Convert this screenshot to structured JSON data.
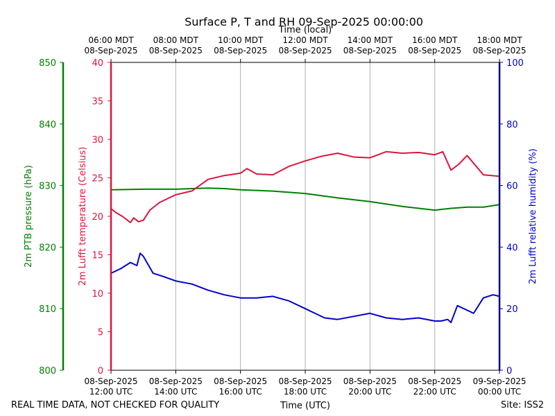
{
  "chart_data": {
    "type": "line",
    "title": "Surface P, T and RH 09-Sep-2025 00:00:00",
    "top_axis_title": "Time (local)",
    "xlabel": "Time (UTC)",
    "footer_left": "REAL TIME DATA, NOT CHECKED FOR QUALITY",
    "footer_right": "Site: ISS2",
    "x_range_hours": [
      12,
      24
    ],
    "x_ticks_hours": [
      12,
      14,
      16,
      18,
      20,
      22,
      24
    ],
    "bottom_tick_labels": [
      [
        "08-Sep-2025",
        "12:00 UTC"
      ],
      [
        "08-Sep-2025",
        "14:00 UTC"
      ],
      [
        "08-Sep-2025",
        "16:00 UTC"
      ],
      [
        "08-Sep-2025",
        "18:00 UTC"
      ],
      [
        "08-Sep-2025",
        "20:00 UTC"
      ],
      [
        "08-Sep-2025",
        "22:00 UTC"
      ],
      [
        "09-Sep-2025",
        "00:00 UTC"
      ]
    ],
    "top_tick_labels": [
      [
        "06:00 MDT",
        "08-Sep-2025"
      ],
      [
        "08:00 MDT",
        "08-Sep-2025"
      ],
      [
        "10:00 MDT",
        "08-Sep-2025"
      ],
      [
        "12:00 MDT",
        "08-Sep-2025"
      ],
      [
        "14:00 MDT",
        "08-Sep-2025"
      ],
      [
        "16:00 MDT",
        "08-Sep-2025"
      ],
      [
        "18:00 MDT",
        "08-Sep-2025"
      ]
    ],
    "axes": {
      "pressure": {
        "label": "2m PTB pressure (hPa)",
        "ylim": [
          800,
          850
        ],
        "ticks": [
          800,
          810,
          820,
          830,
          840,
          850
        ],
        "color": "#008000"
      },
      "temperature": {
        "label": "2m Lufft temperature (Celsius)",
        "ylim": [
          0,
          40
        ],
        "ticks": [
          0,
          5,
          10,
          15,
          20,
          25,
          30,
          35,
          40
        ],
        "color": "#dc143c"
      },
      "humidity": {
        "label": "2m Lufft relative humidity (%)",
        "ylim": [
          0,
          100
        ],
        "ticks": [
          0,
          20,
          40,
          60,
          80,
          100
        ],
        "color": "#0000cd"
      }
    },
    "series": [
      {
        "name": "2m PTB pressure (hPa)",
        "axis": "pressure",
        "color": "#008000",
        "x": [
          12.0,
          13.0,
          14.0,
          14.5,
          15.0,
          15.5,
          16.0,
          17.0,
          18.0,
          19.0,
          20.0,
          21.0,
          22.0,
          22.5,
          23.0,
          23.5,
          24.0
        ],
        "y": [
          829.3,
          829.4,
          829.4,
          829.5,
          829.6,
          829.5,
          829.3,
          829.1,
          828.7,
          828.0,
          827.4,
          826.6,
          826.0,
          826.3,
          826.5,
          826.5,
          826.9
        ]
      },
      {
        "name": "2m Lufft temperature (Celsius)",
        "axis": "temperature",
        "color": "#dc143c",
        "x": [
          12.0,
          12.15,
          12.35,
          12.6,
          12.7,
          12.85,
          13.0,
          13.2,
          13.5,
          14.0,
          14.5,
          15.0,
          15.5,
          16.0,
          16.2,
          16.5,
          17.0,
          17.5,
          18.0,
          18.5,
          19.0,
          19.5,
          20.0,
          20.5,
          21.0,
          21.5,
          22.0,
          22.25,
          22.5,
          22.75,
          23.0,
          23.5,
          24.0
        ],
        "y": [
          21.0,
          20.5,
          20.0,
          19.2,
          19.8,
          19.3,
          19.5,
          20.8,
          21.8,
          22.8,
          23.3,
          24.8,
          25.3,
          25.6,
          26.2,
          25.5,
          25.4,
          26.5,
          27.2,
          27.8,
          28.2,
          27.7,
          27.6,
          28.4,
          28.2,
          28.3,
          28.0,
          28.4,
          26.0,
          26.8,
          27.9,
          25.4,
          25.2
        ]
      },
      {
        "name": "2m Lufft relative humidity (%)",
        "axis": "humidity",
        "color": "#0000cd",
        "x": [
          12.0,
          12.3,
          12.6,
          12.8,
          12.9,
          13.0,
          13.3,
          13.6,
          14.0,
          14.5,
          15.0,
          15.5,
          16.0,
          16.5,
          17.0,
          17.5,
          18.0,
          18.3,
          18.6,
          19.0,
          19.5,
          20.0,
          20.5,
          21.0,
          21.5,
          22.0,
          22.2,
          22.4,
          22.5,
          22.7,
          23.0,
          23.2,
          23.5,
          23.8,
          24.0
        ],
        "y": [
          31.5,
          33.0,
          35.0,
          34.0,
          38.0,
          37.0,
          31.5,
          30.5,
          29.0,
          28.0,
          26.0,
          24.5,
          23.5,
          23.5,
          24.0,
          22.5,
          20.0,
          18.5,
          17.0,
          16.5,
          17.5,
          18.5,
          17.0,
          16.5,
          17.0,
          16.0,
          16.0,
          16.5,
          15.5,
          21.0,
          19.5,
          18.5,
          23.5,
          24.5,
          24.0
        ]
      }
    ]
  }
}
